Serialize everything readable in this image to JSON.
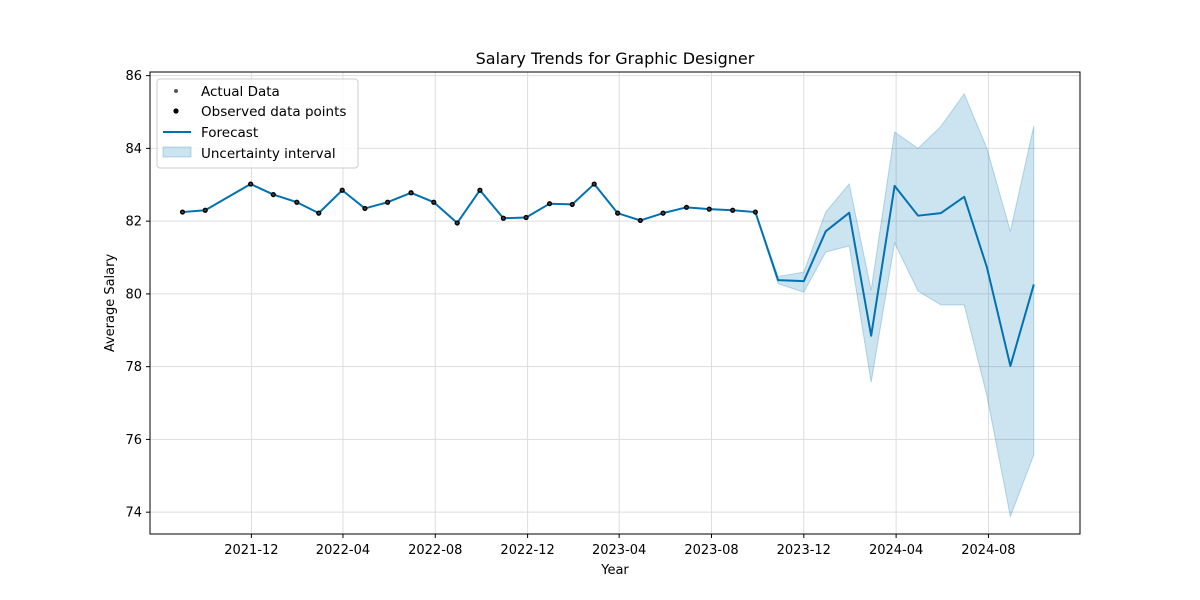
{
  "chart_data": {
    "type": "line",
    "title": "Salary Trends for Graphic Designer",
    "xlabel": "Year",
    "ylabel": "Average Salary",
    "xlim": [
      "2021-07-20",
      "2024-11-30"
    ],
    "ylim": [
      73.4,
      86.1
    ],
    "yticks": [
      74,
      76,
      78,
      80,
      82,
      84,
      86
    ],
    "xticks": [
      "2021-12-01",
      "2022-04-01",
      "2022-08-01",
      "2022-12-01",
      "2023-04-01",
      "2023-08-01",
      "2023-12-01",
      "2024-04-01",
      "2024-08-01"
    ],
    "xtick_labels": [
      "2021-12",
      "2022-04",
      "2022-08",
      "2022-12",
      "2023-04",
      "2023-08",
      "2023-12",
      "2024-04",
      "2024-08"
    ],
    "grid": true,
    "legend_position": "upper-left",
    "legend": [
      "Actual Data",
      "Observed data points",
      "Forecast",
      "Uncertainty interval"
    ],
    "colors": {
      "forecast": "#0072B2",
      "interval": "#0072B2",
      "observed": "#000000",
      "actual": "#555555",
      "grid": "#dddddd"
    },
    "observed": {
      "x": [
        "2021-09-01",
        "2021-10-01",
        "2021-11-30",
        "2021-12-30",
        "2022-01-30",
        "2022-02-28",
        "2022-03-31",
        "2022-04-30",
        "2022-05-30",
        "2022-06-30",
        "2022-07-30",
        "2022-08-30",
        "2022-09-29",
        "2022-10-30",
        "2022-11-29",
        "2022-12-30",
        "2023-01-29",
        "2023-02-27",
        "2023-03-30",
        "2023-04-29",
        "2023-05-29",
        "2023-06-29",
        "2023-07-29",
        "2023-08-29",
        "2023-09-28"
      ],
      "y": [
        82.25,
        82.3,
        83.02,
        82.73,
        82.52,
        82.22,
        82.85,
        82.35,
        82.52,
        82.78,
        82.52,
        81.95,
        82.85,
        82.08,
        82.1,
        82.48,
        82.46,
        83.02,
        82.22,
        82.02,
        82.22,
        82.38,
        82.33,
        82.3,
        82.25
      ]
    },
    "forecast": {
      "x": [
        "2021-09-01",
        "2021-10-01",
        "2021-11-30",
        "2021-12-30",
        "2022-01-30",
        "2022-02-28",
        "2022-03-31",
        "2022-04-30",
        "2022-05-30",
        "2022-06-30",
        "2022-07-30",
        "2022-08-30",
        "2022-09-29",
        "2022-10-30",
        "2022-11-29",
        "2022-12-30",
        "2023-01-29",
        "2023-02-27",
        "2023-03-30",
        "2023-04-29",
        "2023-05-29",
        "2023-06-29",
        "2023-07-29",
        "2023-08-29",
        "2023-09-28",
        "2023-10-28",
        "2023-12-01",
        "2023-12-30",
        "2024-01-30",
        "2024-02-28",
        "2024-03-30",
        "2024-04-30",
        "2024-05-30",
        "2024-06-30",
        "2024-07-30",
        "2024-08-30",
        "2024-09-30"
      ],
      "y": [
        82.25,
        82.3,
        83.02,
        82.73,
        82.52,
        82.22,
        82.85,
        82.35,
        82.52,
        82.78,
        82.52,
        81.95,
        82.85,
        82.08,
        82.1,
        82.48,
        82.46,
        83.02,
        82.22,
        82.02,
        82.22,
        82.38,
        82.33,
        82.3,
        82.25,
        80.38,
        80.35,
        81.72,
        82.23,
        78.85,
        82.97,
        82.15,
        82.22,
        82.67,
        80.73,
        78.02,
        80.26
      ]
    },
    "interval": {
      "x": [
        "2023-09-28",
        "2023-10-28",
        "2023-12-01",
        "2023-12-30",
        "2024-01-30",
        "2024-02-28",
        "2024-03-30",
        "2024-04-30",
        "2024-05-30",
        "2024-06-30",
        "2024-07-30",
        "2024-08-30",
        "2024-09-30"
      ],
      "lower": [
        82.24,
        80.28,
        80.05,
        81.15,
        81.32,
        77.57,
        81.4,
        80.08,
        79.7,
        79.7,
        77.2,
        73.88,
        75.58
      ],
      "upper": [
        82.26,
        80.48,
        80.6,
        82.25,
        83.02,
        80.1,
        84.45,
        84.0,
        84.6,
        85.5,
        84.0,
        81.72,
        84.62
      ]
    },
    "actual": {
      "x": [
        "2021-09-01",
        "2021-10-01",
        "2021-11-30",
        "2021-12-30",
        "2022-01-30",
        "2022-02-28",
        "2022-03-31",
        "2022-04-30",
        "2022-05-30",
        "2022-06-30",
        "2022-07-30",
        "2022-08-30",
        "2022-09-29",
        "2022-10-30",
        "2022-11-29",
        "2022-12-30",
        "2023-01-29",
        "2023-02-27",
        "2023-03-30",
        "2023-04-29",
        "2023-05-29",
        "2023-06-29",
        "2023-07-29",
        "2023-08-29",
        "2023-09-28"
      ],
      "y": [
        82.25,
        82.3,
        83.02,
        82.73,
        82.52,
        82.22,
        82.85,
        82.35,
        82.52,
        82.78,
        82.52,
        81.95,
        82.85,
        82.08,
        82.1,
        82.48,
        82.46,
        83.02,
        82.22,
        82.02,
        82.22,
        82.38,
        82.33,
        82.3,
        82.25
      ]
    }
  }
}
